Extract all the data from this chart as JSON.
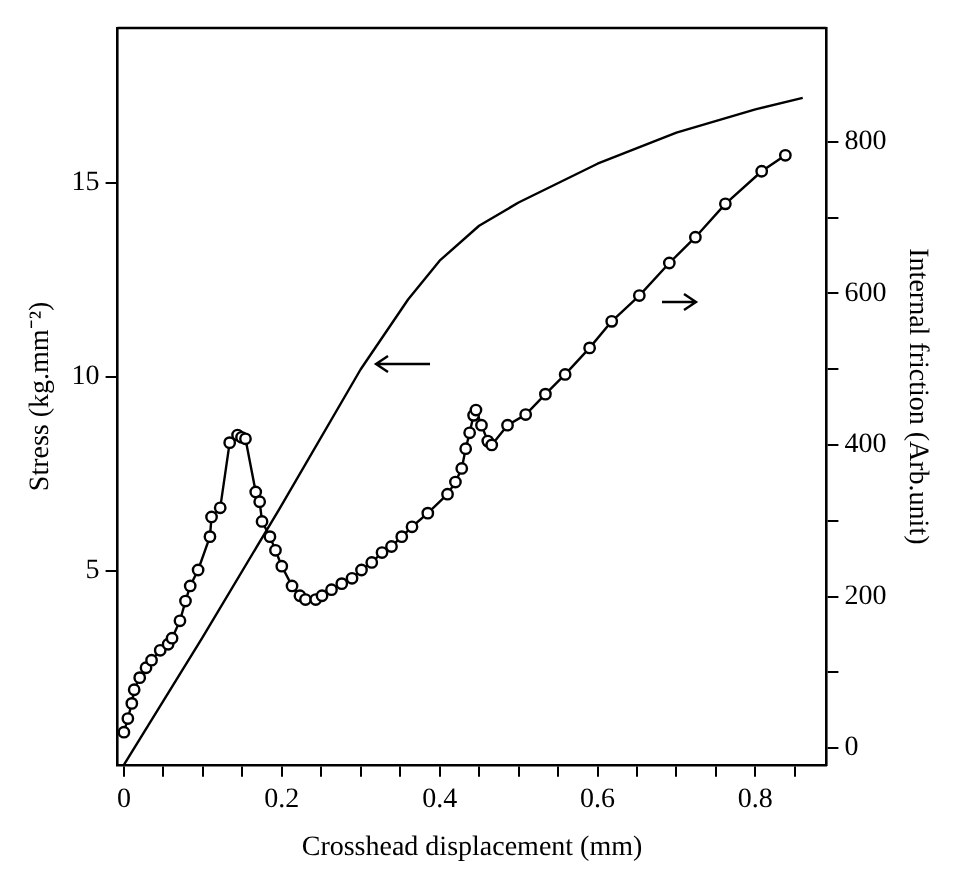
{
  "chart_data": {
    "type": "line",
    "xlabel": "Crosshead displacement (mm)",
    "ylabel": "Stress (kg.mm⁻²)",
    "y2label": "Internal friction (Arb.unit)",
    "xlim": [
      -0.008,
      0.89
    ],
    "ylim": [
      0,
      19
    ],
    "y2lim": [
      -22,
      950
    ],
    "xticks": [
      0,
      {
        "value": 0.05,
        "label": null
      },
      {
        "value": 0.1,
        "label": null
      },
      {
        "value": 0.15,
        "label": null
      },
      0.2,
      {
        "value": 0.25,
        "label": null
      },
      {
        "value": 0.3,
        "label": null
      },
      {
        "value": 0.35,
        "label": null
      },
      0.4,
      {
        "value": 0.45,
        "label": null
      },
      {
        "value": 0.5,
        "label": null
      },
      {
        "value": 0.55,
        "label": null
      },
      0.6,
      {
        "value": 0.65,
        "label": null
      },
      {
        "value": 0.7,
        "label": null
      },
      {
        "value": 0.75,
        "label": null
      },
      0.8,
      {
        "value": 0.85,
        "label": null
      }
    ],
    "yticks": [
      5,
      10,
      15
    ],
    "y2ticks": [
      0,
      {
        "value": 100,
        "label": null
      },
      200,
      {
        "value": 300,
        "label": null
      },
      400,
      {
        "value": 500,
        "label": null
      },
      600,
      {
        "value": 700,
        "label": null
      },
      800
    ],
    "grid": false,
    "legend": false,
    "series": [
      {
        "color": "#000000",
        "marker": "none",
        "x": [
          0,
          0.1,
          0.2,
          0.3,
          0.36,
          0.4,
          0.45,
          0.5,
          0.6,
          0.7,
          0.8,
          0.86
        ],
        "values": [
          0,
          3.3,
          6.7,
          10.2,
          12,
          13,
          13.9,
          14.5,
          15.5,
          16.3,
          16.9,
          17.2
        ]
      },
      {
        "color": "#000000",
        "marker": "circle",
        "axis": "y2",
        "x": [
          0,
          0.005,
          0.01,
          0.013,
          0.02,
          0.028,
          0.035,
          0.046,
          0.056,
          0.061,
          0.071,
          0.078,
          0.084,
          0.094,
          0.109,
          0.111,
          0.122,
          0.134,
          0.144,
          0.149,
          0.154,
          0.167,
          0.172,
          0.175,
          0.185,
          0.192,
          0.2,
          0.213,
          0.223,
          0.23,
          0.243,
          0.251,
          0.263,
          0.276,
          0.289,
          0.301,
          0.314,
          0.327,
          0.339,
          0.352,
          0.365,
          0.385,
          0.41,
          0.42,
          0.428,
          0.433,
          0.438,
          0.443,
          0.446,
          0.453,
          0.461,
          0.466,
          0.486,
          0.509,
          0.534,
          0.559,
          0.59,
          0.618,
          0.653,
          0.691,
          0.724,
          0.762,
          0.808,
          0.838
        ],
        "values": [
          21,
          39,
          59,
          77,
          93,
          106,
          116,
          129,
          137,
          145,
          168,
          194,
          214,
          235,
          279,
          305,
          317,
          403,
          413,
          410,
          408,
          338,
          325,
          299,
          279,
          261,
          240,
          214,
          201,
          196,
          196,
          201,
          209,
          217,
          224,
          235,
          245,
          258,
          266,
          279,
          292,
          310,
          335,
          351,
          369,
          395,
          416,
          439,
          446,
          426,
          405,
          400,
          426,
          440,
          467,
          493,
          528,
          563,
          597,
          640,
          674,
          718,
          761,
          782
        ]
      }
    ]
  }
}
